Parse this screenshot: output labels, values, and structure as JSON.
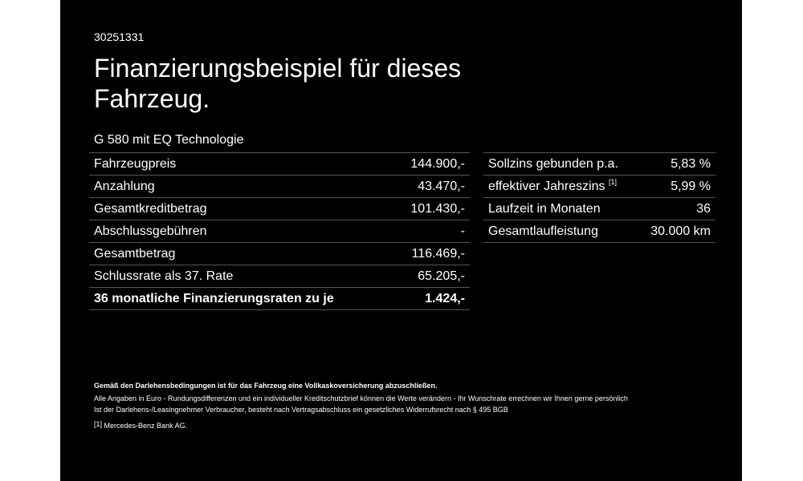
{
  "offer_id": "30251331",
  "title": "Finanzierungsbeispiel für dieses Fahrzeug.",
  "model": "G 580 mit EQ Technologie",
  "finance_rows": [
    {
      "label": "Fahrzeugpreis",
      "value": "144.900,-"
    },
    {
      "label": "Anzahlung",
      "value": "43.470,-"
    },
    {
      "label": "Gesamtkreditbetrag",
      "value": "101.430,-"
    },
    {
      "label": "Abschlussgebühren",
      "value": "-"
    },
    {
      "label": "Gesamtbetrag",
      "value": "116.469,-"
    },
    {
      "label": "Schlussrate als 37. Rate",
      "value": "65.205,-"
    },
    {
      "label": "36 monatliche Finanzierungsraten zu je",
      "value": "1.424,-"
    }
  ],
  "terms_rows": [
    {
      "label": "Sollzins gebunden p.a.",
      "value": "5,83 %"
    },
    {
      "label": "effektiver Jahreszins",
      "footnote": "[1]",
      "value": "5,99 %"
    },
    {
      "label": "Laufzeit in Monaten",
      "value": "36"
    },
    {
      "label": "Gesamtlaufleistung",
      "value": "30.000 km"
    }
  ],
  "notes": {
    "insurance": "Gemäß den Darlehensbedingungen ist für das Fahrzeug eine Vollkaskoversicherung abzuschließen.",
    "disclaimer1": "Alle Angaben in Euro - Rundungsdifferenzen und ein individueller Kreditschutzbrief können die Werte verändern - Ihr Wunschrate errechnen wir Ihnen gerne persönlich",
    "disclaimer2": "Ist der Darlehens-/Leasingnehmer Verbraucher, besteht nach Vertragsabschluss ein gesetzliches Widerrufsrecht nach § 495 BGB",
    "footnote_marker": "[1]",
    "footnote_text": "Mercedes-Benz Bank AG."
  }
}
